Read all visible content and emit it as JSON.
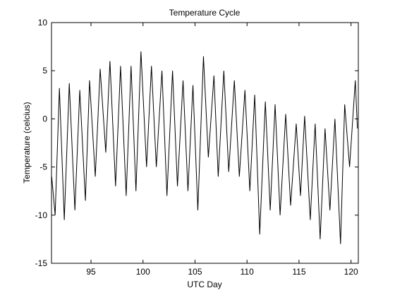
{
  "chart_data": {
    "type": "line",
    "title": "Temperature Cycle",
    "x_label": "UTC Day",
    "y_label": "Temperature (celcius)",
    "xlim": [
      91.2,
      120.7
    ],
    "ylim": [
      -15,
      10
    ],
    "xticks": [
      95,
      100,
      105,
      110,
      115,
      120
    ],
    "yticks": [
      -15,
      -10,
      -5,
      0,
      5,
      10
    ],
    "grid": false,
    "series": [
      {
        "color": "#000000",
        "x": [
          91.22,
          91.55,
          91.96,
          92.43,
          92.91,
          93.45,
          93.92,
          94.46,
          94.86,
          95.41,
          95.88,
          96.42,
          96.82,
          97.36,
          97.84,
          98.38,
          98.85,
          99.32,
          99.8,
          100.34,
          100.81,
          101.28,
          101.82,
          102.3,
          102.84,
          103.31,
          103.85,
          104.32,
          104.8,
          105.27,
          105.81,
          106.28,
          106.82,
          107.23,
          107.77,
          108.24,
          108.78,
          109.26,
          109.8,
          110.27,
          110.74,
          111.22,
          111.76,
          112.23,
          112.7,
          113.18,
          113.72,
          114.19,
          114.73,
          115.14,
          115.54,
          116.08,
          116.55,
          117.03,
          117.5,
          117.97,
          118.45,
          118.99,
          119.39,
          119.86,
          120.41,
          120.61
        ],
        "values": [
          -6,
          -10,
          3.2,
          -10.5,
          3.7,
          -9.5,
          3,
          -8.5,
          4,
          -6,
          5.2,
          -3.5,
          6,
          -7,
          5.5,
          -8,
          5.5,
          -7.5,
          7,
          -5,
          5.5,
          -5,
          5,
          -8,
          5,
          -7,
          4,
          -7.5,
          3.5,
          -9.5,
          6.5,
          -4,
          4.5,
          -6,
          5,
          -5.5,
          4,
          -6,
          3,
          -7.5,
          2.5,
          -12,
          1.8,
          -9.5,
          1.5,
          -10,
          0.5,
          -9,
          -0.5,
          -8,
          0.3,
          -10.5,
          -0.5,
          -12.5,
          -1,
          -9.5,
          0,
          -13,
          1.5,
          -5,
          4,
          -1
        ]
      }
    ]
  }
}
